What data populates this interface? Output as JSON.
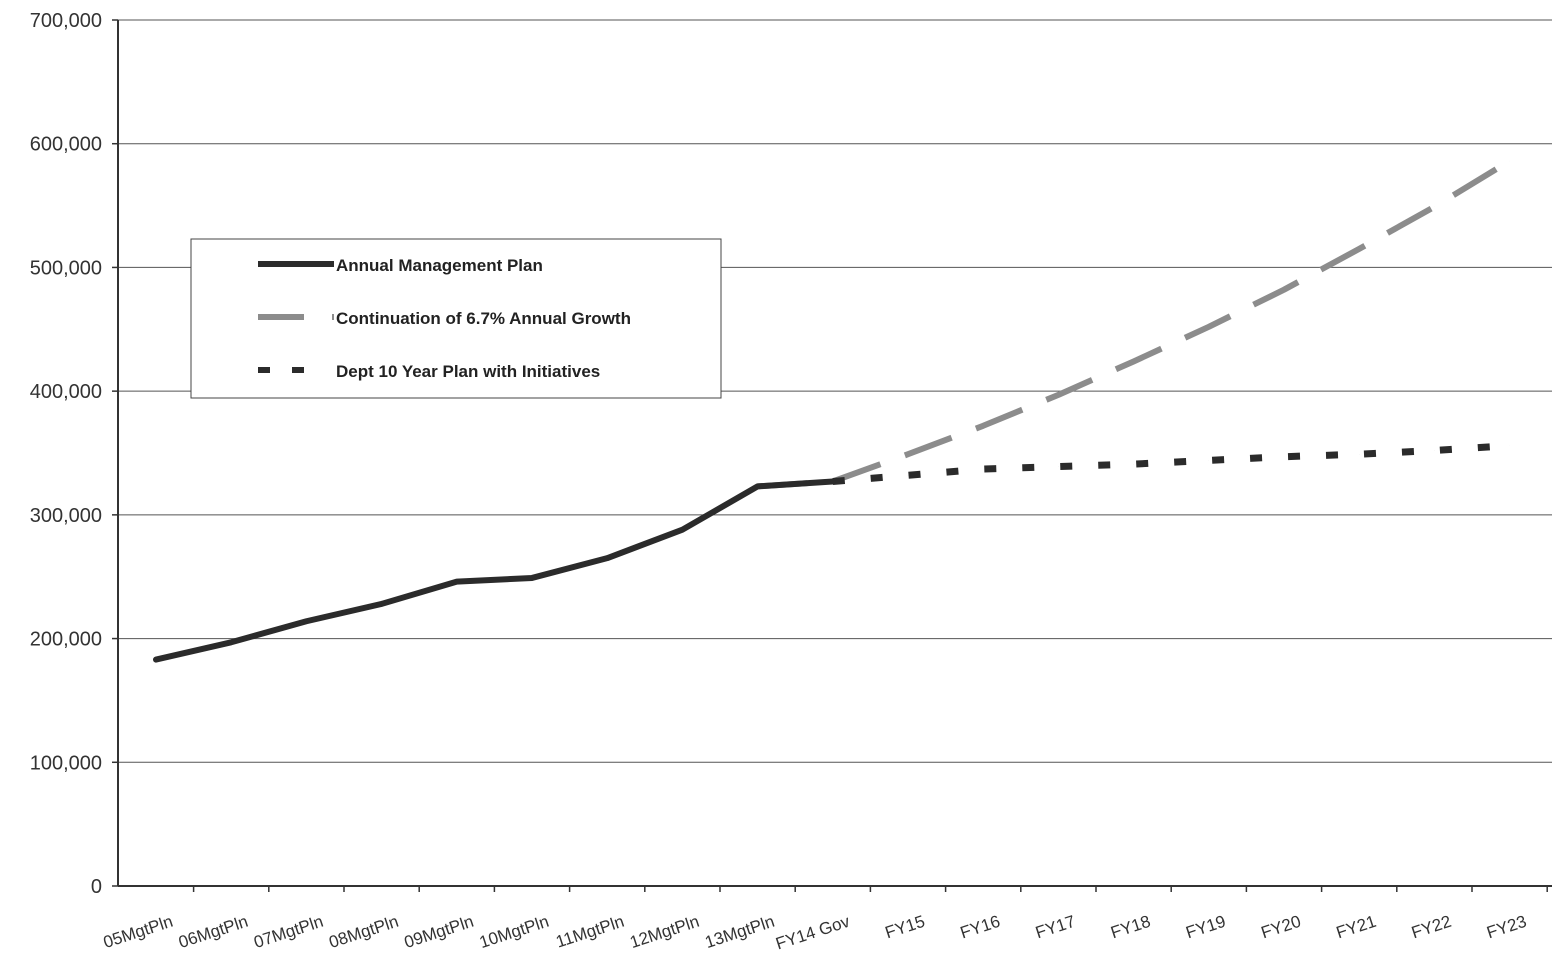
{
  "chart_data": {
    "type": "line",
    "title": "",
    "xlabel": "",
    "ylabel": "",
    "ylim": [
      0,
      700000
    ],
    "yticks": [
      0,
      100000,
      200000,
      300000,
      400000,
      500000,
      600000,
      700000
    ],
    "ytick_labels": [
      "0",
      "100,000",
      "200,000",
      "300,000",
      "400,000",
      "500,000",
      "600,000",
      "700,000"
    ],
    "categories": [
      "05MgtPln",
      "06MgtPln",
      "07MgtPln",
      "08MgtPln",
      "09MgtPln",
      "10MgtPln",
      "11MgtPln",
      "12MgtPln",
      "13MgtPln",
      "FY14 Gov",
      "FY15",
      "FY16",
      "FY17",
      "FY18",
      "FY19",
      "FY20",
      "FY21",
      "FY22",
      "FY23"
    ],
    "grid": true,
    "legend_position": "upper-left",
    "series": [
      {
        "name": "Annual Management Plan",
        "color": "#2b2b2b",
        "style": "solid",
        "values": [
          183000,
          197000,
          214000,
          228000,
          246000,
          249000,
          265000,
          288000,
          323000,
          327000,
          null,
          null,
          null,
          null,
          null,
          null,
          null,
          null,
          null
        ]
      },
      {
        "name": "Continuation of 6.7% Annual Growth",
        "color": "#8c8c8c",
        "style": "long-dash",
        "values": [
          null,
          null,
          null,
          null,
          null,
          null,
          null,
          null,
          323000,
          327000,
          349000,
          372000,
          397000,
          424000,
          452000,
          482000,
          515000,
          549000,
          586000
        ]
      },
      {
        "name": "Dept 10 Year Plan with Initiatives",
        "color": "#2b2b2b",
        "style": "short-dash",
        "values": [
          null,
          null,
          null,
          null,
          null,
          null,
          null,
          null,
          null,
          327000,
          332000,
          337000,
          339000,
          341000,
          344000,
          347000,
          349000,
          352000,
          356000
        ]
      }
    ]
  }
}
